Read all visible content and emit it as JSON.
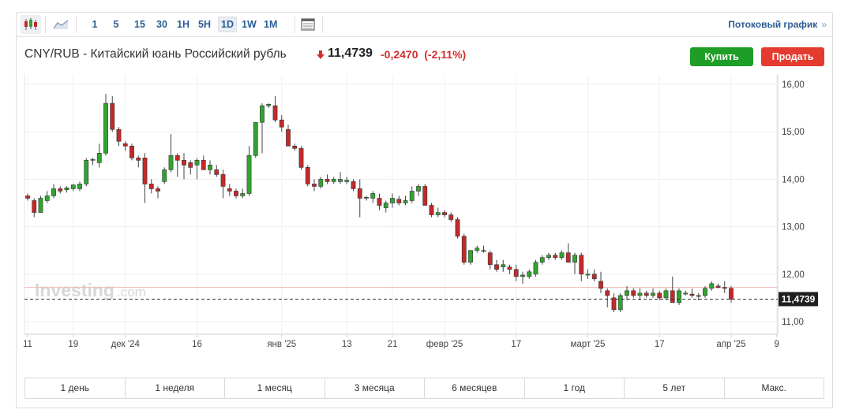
{
  "toolbar": {
    "timeframes": [
      "1",
      "5",
      "15",
      "30",
      "1H",
      "5H",
      "1D",
      "1W",
      "1M"
    ],
    "active": "1D",
    "stream_label": "Потоковый график",
    "stream_chevron": "»",
    "icons": [
      "candlestick-chart-icon",
      "area-chart-icon",
      "calendar-grid-icon"
    ]
  },
  "header": {
    "pair": "CNY/RUB - Китайский юань Российский рубль",
    "direction_icon": "down-arrow-icon",
    "price": "11,4739",
    "change": "-0,2470",
    "change_pct": "(-2,11%)",
    "buy_label": "Купить",
    "sell_label": "Продать"
  },
  "colors": {
    "up": "#2fa52f",
    "down": "#c62828",
    "accent": "#2a5d96",
    "buy": "#1e9e27",
    "sell": "#e53a2f"
  },
  "watermark": {
    "main": "Investing",
    "suffix": ".com"
  },
  "ranges": [
    "1 день",
    "1 неделя",
    "1 месяц",
    "3 месяца",
    "6 месяцев",
    "1 год",
    "5 лет",
    "Макс."
  ],
  "chart_data": {
    "type": "candlestick",
    "ylim": [
      10.8,
      16.2
    ],
    "yticks": [
      "16,00",
      "15,00",
      "14,00",
      "13,00",
      "12,00",
      "11,00"
    ],
    "ytick_values": [
      16,
      15,
      14,
      13,
      12,
      11
    ],
    "xtick_labels": [
      "11",
      "19",
      "дек '24",
      "16",
      "янв '25",
      "13",
      "21",
      "февр '25",
      "17",
      "март '25",
      "17",
      "апр '25",
      "9"
    ],
    "xtick_index": [
      0,
      7,
      15,
      26,
      39,
      49,
      56,
      64,
      75,
      86,
      97,
      108,
      115
    ],
    "last_price": 11.4739,
    "last_label": "11,4739",
    "reference_line": 11.72,
    "grid": true,
    "candles": [
      [
        13.65,
        13.7,
        13.55,
        13.6
      ],
      [
        13.55,
        13.6,
        13.2,
        13.3
      ],
      [
        13.3,
        13.65,
        13.3,
        13.6
      ],
      [
        13.55,
        13.75,
        13.5,
        13.65
      ],
      [
        13.65,
        13.9,
        13.6,
        13.8
      ],
      [
        13.8,
        13.85,
        13.7,
        13.75
      ],
      [
        13.78,
        13.85,
        13.72,
        13.82
      ],
      [
        13.8,
        13.9,
        13.75,
        13.88
      ],
      [
        13.8,
        13.95,
        13.75,
        13.9
      ],
      [
        13.9,
        14.45,
        13.85,
        14.4
      ],
      [
        14.4,
        14.45,
        14.3,
        14.42
      ],
      [
        14.35,
        14.75,
        14.25,
        14.55
      ],
      [
        14.55,
        15.8,
        14.5,
        15.6
      ],
      [
        15.6,
        15.75,
        15.0,
        15.05
      ],
      [
        15.05,
        15.1,
        14.7,
        14.8
      ],
      [
        14.75,
        14.8,
        14.6,
        14.7
      ],
      [
        14.7,
        14.75,
        14.4,
        14.45
      ],
      [
        14.45,
        14.5,
        14.25,
        14.4
      ],
      [
        14.45,
        14.55,
        13.5,
        13.9
      ],
      [
        13.9,
        14.0,
        13.7,
        13.8
      ],
      [
        13.8,
        13.85,
        13.6,
        13.75
      ],
      [
        13.95,
        14.25,
        13.9,
        14.2
      ],
      [
        14.2,
        14.95,
        14.15,
        14.5
      ],
      [
        14.5,
        14.55,
        14.05,
        14.4
      ],
      [
        14.4,
        14.55,
        14.0,
        14.3
      ],
      [
        14.35,
        14.4,
        14.1,
        14.25
      ],
      [
        14.3,
        14.45,
        14.0,
        14.4
      ],
      [
        14.4,
        14.5,
        14.2,
        14.2
      ],
      [
        14.2,
        14.4,
        14.1,
        14.3
      ],
      [
        14.2,
        14.3,
        14.05,
        14.1
      ],
      [
        14.1,
        14.2,
        13.6,
        13.85
      ],
      [
        13.8,
        13.9,
        13.65,
        13.75
      ],
      [
        13.75,
        13.8,
        13.6,
        13.65
      ],
      [
        13.65,
        13.8,
        13.6,
        13.7
      ],
      [
        13.7,
        14.7,
        13.65,
        14.5
      ],
      [
        14.5,
        15.2,
        14.45,
        15.2
      ],
      [
        15.2,
        15.6,
        14.55,
        15.55
      ],
      [
        15.55,
        15.6,
        15.5,
        15.58
      ],
      [
        15.55,
        15.75,
        15.2,
        15.25
      ],
      [
        15.25,
        15.35,
        15.0,
        15.1
      ],
      [
        15.05,
        15.15,
        14.7,
        14.7
      ],
      [
        14.7,
        14.75,
        14.6,
        14.65
      ],
      [
        14.65,
        14.7,
        14.2,
        14.25
      ],
      [
        14.25,
        14.3,
        13.85,
        13.9
      ],
      [
        13.9,
        14.0,
        13.75,
        13.85
      ],
      [
        13.85,
        14.05,
        13.8,
        14.0
      ],
      [
        14.0,
        14.1,
        13.9,
        13.95
      ],
      [
        13.95,
        14.05,
        13.9,
        14.0
      ],
      [
        13.95,
        14.15,
        13.9,
        14.0
      ],
      [
        13.95,
        14.05,
        13.9,
        13.98
      ],
      [
        13.95,
        14.0,
        13.75,
        13.8
      ],
      [
        13.8,
        14.0,
        13.2,
        13.6
      ],
      [
        13.6,
        13.65,
        13.55,
        13.62
      ],
      [
        13.6,
        13.75,
        13.5,
        13.7
      ],
      [
        13.6,
        13.7,
        13.35,
        13.45
      ],
      [
        13.4,
        13.55,
        13.3,
        13.5
      ],
      [
        13.5,
        13.7,
        13.4,
        13.6
      ],
      [
        13.58,
        13.65,
        13.45,
        13.5
      ],
      [
        13.5,
        13.65,
        13.45,
        13.55
      ],
      [
        13.55,
        13.85,
        13.5,
        13.75
      ],
      [
        13.75,
        13.9,
        13.65,
        13.85
      ],
      [
        13.85,
        13.9,
        13.45,
        13.45
      ],
      [
        13.45,
        13.5,
        13.2,
        13.25
      ],
      [
        13.25,
        13.4,
        13.2,
        13.3
      ],
      [
        13.3,
        13.35,
        13.2,
        13.25
      ],
      [
        13.25,
        13.3,
        13.1,
        13.15
      ],
      [
        13.15,
        13.2,
        12.75,
        12.8
      ],
      [
        12.8,
        12.85,
        12.2,
        12.25
      ],
      [
        12.25,
        12.5,
        12.2,
        12.5
      ],
      [
        12.5,
        12.6,
        12.45,
        12.55
      ],
      [
        12.5,
        12.6,
        12.45,
        12.5
      ],
      [
        12.45,
        12.5,
        12.1,
        12.2
      ],
      [
        12.2,
        12.3,
        12.05,
        12.1
      ],
      [
        12.15,
        12.3,
        12.05,
        12.2
      ],
      [
        12.15,
        12.2,
        12.0,
        12.1
      ],
      [
        12.1,
        12.2,
        11.85,
        11.95
      ],
      [
        11.95,
        12.05,
        11.8,
        11.98
      ],
      [
        11.95,
        12.1,
        11.9,
        12.05
      ],
      [
        12.0,
        12.3,
        11.95,
        12.25
      ],
      [
        12.25,
        12.4,
        12.2,
        12.35
      ],
      [
        12.35,
        12.45,
        12.3,
        12.4
      ],
      [
        12.4,
        12.45,
        12.3,
        12.35
      ],
      [
        12.35,
        12.5,
        12.3,
        12.45
      ],
      [
        12.45,
        12.65,
        12.25,
        12.25
      ],
      [
        12.25,
        12.45,
        12.0,
        12.4
      ],
      [
        12.4,
        12.45,
        11.85,
        12.0
      ],
      [
        12.0,
        12.1,
        11.9,
        12.0
      ],
      [
        12.0,
        12.1,
        11.85,
        11.9
      ],
      [
        11.85,
        12.05,
        11.6,
        11.7
      ],
      [
        11.65,
        11.7,
        11.3,
        11.55
      ],
      [
        11.5,
        11.6,
        11.2,
        11.25
      ],
      [
        11.25,
        11.6,
        11.2,
        11.55
      ],
      [
        11.55,
        11.75,
        11.45,
        11.65
      ],
      [
        11.65,
        11.7,
        11.5,
        11.55
      ],
      [
        11.55,
        11.7,
        11.45,
        11.6
      ],
      [
        11.6,
        11.65,
        11.5,
        11.55
      ],
      [
        11.55,
        11.7,
        11.5,
        11.6
      ],
      [
        11.6,
        11.65,
        11.45,
        11.5
      ],
      [
        11.5,
        11.7,
        11.45,
        11.65
      ],
      [
        11.65,
        11.95,
        11.4,
        11.4
      ],
      [
        11.4,
        11.7,
        11.35,
        11.65
      ],
      [
        11.6,
        11.65,
        11.55,
        11.6
      ],
      [
        11.58,
        11.7,
        11.5,
        11.55
      ],
      [
        11.55,
        11.6,
        11.45,
        11.55
      ],
      [
        11.55,
        11.75,
        11.5,
        11.7
      ],
      [
        11.7,
        11.85,
        11.65,
        11.8
      ],
      [
        11.75,
        11.8,
        11.7,
        11.72
      ],
      [
        11.72,
        11.85,
        11.6,
        11.7
      ],
      [
        11.7,
        11.75,
        11.4,
        11.47
      ]
    ]
  }
}
